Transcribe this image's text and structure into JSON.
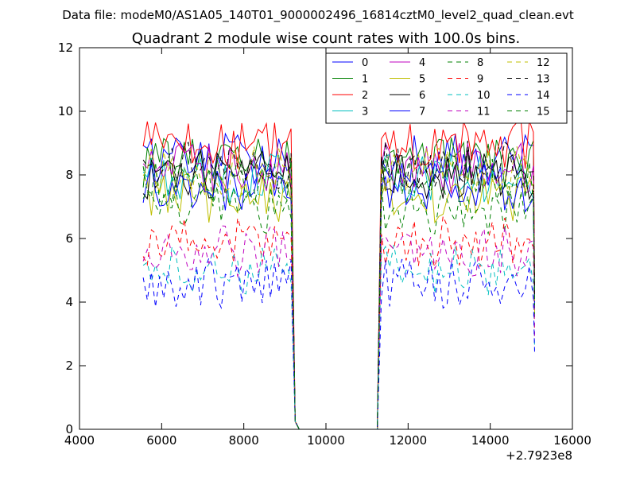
{
  "chart_data": {
    "type": "line",
    "suptitle": "Data file: modeM0/AS1A05_140T01_9000002496_16814cztM0_level2_quad_clean.evt",
    "title": "Quadrant 2 module wise count rates with 100.0s bins.",
    "xlabel": "",
    "ylabel": "",
    "x_offset_label": "+2.7923e8",
    "xlim": [
      4000,
      16000
    ],
    "ylim": [
      0,
      12
    ],
    "xticks": [
      "4000",
      "6000",
      "8000",
      "10000",
      "12000",
      "14000",
      "16000"
    ],
    "yticks": [
      "0",
      "2",
      "4",
      "6",
      "8",
      "10",
      "12"
    ],
    "segments": [
      {
        "x_start": 5550,
        "x_end": 9150,
        "step": 100
      },
      {
        "x_start": 11350,
        "x_end": 15050,
        "step": 100
      }
    ],
    "gap": {
      "fall_end": 9350,
      "rise_start": 11250
    },
    "legend": {
      "placement": "top-right",
      "columns": 4
    },
    "series": [
      {
        "name": "0",
        "color": "#0000ff",
        "dashed": false,
        "level": 8.5
      },
      {
        "name": "1",
        "color": "#008000",
        "dashed": false,
        "level": 8.4
      },
      {
        "name": "2",
        "color": "#ff0000",
        "dashed": false,
        "level": 8.9
      },
      {
        "name": "3",
        "color": "#00bfbf",
        "dashed": false,
        "level": 7.9
      },
      {
        "name": "4",
        "color": "#bf00bf",
        "dashed": false,
        "level": 8.2
      },
      {
        "name": "5",
        "color": "#bfbf00",
        "dashed": false,
        "level": 7.3
      },
      {
        "name": "6",
        "color": "#000000",
        "dashed": false,
        "level": 8.0
      },
      {
        "name": "7",
        "color": "#0000ff",
        "dashed": false,
        "level": 7.6
      },
      {
        "name": "8",
        "color": "#008000",
        "dashed": true,
        "level": 6.9
      },
      {
        "name": "9",
        "color": "#ff0000",
        "dashed": true,
        "level": 5.9
      },
      {
        "name": "10",
        "color": "#00bfbf",
        "dashed": true,
        "level": 5.0
      },
      {
        "name": "11",
        "color": "#bf00bf",
        "dashed": true,
        "level": 5.6
      },
      {
        "name": "12",
        "color": "#bfbf00",
        "dashed": true,
        "level": 8.1
      },
      {
        "name": "13",
        "color": "#000000",
        "dashed": true,
        "level": 8.3
      },
      {
        "name": "14",
        "color": "#0000ff",
        "dashed": true,
        "level": 4.6
      },
      {
        "name": "15",
        "color": "#008000",
        "dashed": true,
        "level": 7.8
      }
    ]
  }
}
